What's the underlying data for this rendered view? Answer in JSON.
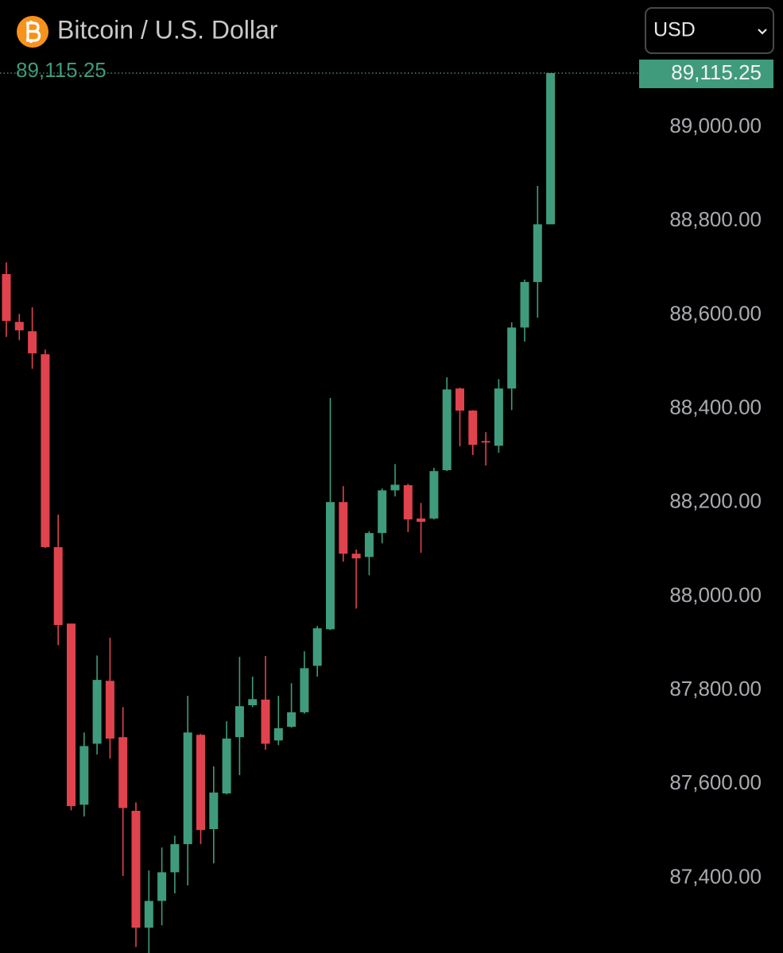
{
  "chart_data": {
    "type": "candlestick",
    "title": "Bitcoin / U.S. Dollar",
    "currency": "USD",
    "up_color": "#3f9b7c",
    "down_color": "#e0434d",
    "open": [
      88687,
      88585,
      88565,
      88516,
      88105,
      87942,
      87556,
      87686,
      87820,
      87700,
      87543,
      87294,
      87351,
      87412,
      87472,
      87705,
      87504,
      87580,
      87700,
      87768,
      87780,
      87693,
      87722,
      87753,
      87852,
      87930,
      88201,
      88091,
      88084,
      88135,
      88226,
      88237,
      88166,
      88166,
      88269,
      88443,
      88396,
      88331,
      88321,
      88443,
      88573,
      88670,
      88793
    ],
    "high": [
      88712,
      88602,
      88616,
      88526,
      88174,
      87942,
      87710,
      87874,
      87912,
      87764,
      87561,
      87416,
      87465,
      87490,
      87788,
      87707,
      87638,
      87734,
      87871,
      87829,
      87873,
      87788,
      87815,
      87883,
      87937,
      88423,
      88235,
      88100,
      88139,
      88230,
      88282,
      88240,
      88199,
      88274,
      88467,
      88445,
      88397,
      88350,
      88463,
      88584,
      88675,
      88875,
      89115.25
    ],
    "low": [
      88553,
      88546,
      88485,
      88103,
      87896,
      87544,
      87531,
      87663,
      87654,
      87404,
      87253,
      87240,
      87299,
      87367,
      87384,
      87472,
      87431,
      87578,
      87619,
      87764,
      87673,
      87683,
      87720,
      87750,
      87829,
      87928,
      88074,
      87974,
      88045,
      88113,
      88213,
      88137,
      88093,
      88164,
      88267,
      88320,
      88301,
      88279,
      88306,
      88397,
      88543,
      88594,
      88793
    ],
    "close": [
      88587,
      88567,
      88518,
      88105,
      87939,
      87553,
      87681,
      87822,
      87697,
      87549,
      87294,
      87351,
      87412,
      87472,
      87710,
      87502,
      87582,
      87697,
      87766,
      87781,
      87686,
      87719,
      87753,
      87847,
      87932,
      88201,
      88091,
      88081,
      88135,
      88226,
      88238,
      88164,
      88159,
      88267,
      88441,
      88396,
      88323,
      88328,
      88443,
      88573,
      88670,
      88793,
      89115.25
    ],
    "last_price": {
      "value": 89115.25,
      "label": "89,115.25"
    },
    "ylim": [
      87240,
      89271
    ],
    "yticks": [
      {
        "value": 87400,
        "label": "87,400.00"
      },
      {
        "value": 87600,
        "label": "87,600.00"
      },
      {
        "value": 87800,
        "label": "87,800.00"
      },
      {
        "value": 88000,
        "label": "88,000.00"
      },
      {
        "value": 88200,
        "label": "88,200.00"
      },
      {
        "value": 88400,
        "label": "88,400.00"
      },
      {
        "value": 88600,
        "label": "88,600.00"
      },
      {
        "value": 88800,
        "label": "88,800.00"
      },
      {
        "value": 89000,
        "label": "89,000.00"
      }
    ]
  }
}
